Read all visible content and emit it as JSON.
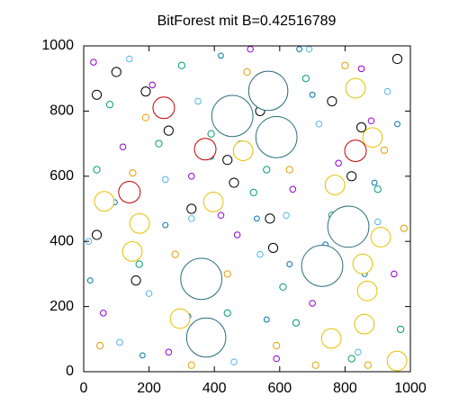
{
  "chart_data": {
    "type": "scatter",
    "title": "BitForest mit B=0.42516789",
    "xlim": [
      0,
      1000
    ],
    "ylim": [
      0,
      1000
    ],
    "xticks": [
      0,
      200,
      400,
      600,
      800,
      1000
    ],
    "yticks": [
      0,
      200,
      400,
      600,
      800,
      1000
    ],
    "series": [
      {
        "color": "#9400d3",
        "fill": "none",
        "size": 9,
        "x": [
          30,
          120,
          210,
          330,
          420,
          510,
          640,
          700,
          780,
          880,
          950,
          60,
          260,
          470,
          590,
          850
        ],
        "y": [
          950,
          690,
          880,
          600,
          480,
          990,
          560,
          210,
          640,
          770,
          300,
          180,
          60,
          420,
          40,
          930
        ]
      },
      {
        "color": "#009e73",
        "fill": "none",
        "size": 10,
        "x": [
          80,
          170,
          300,
          390,
          520,
          610,
          680,
          760,
          900,
          970,
          40,
          230,
          440,
          560,
          820,
          650
        ],
        "y": [
          820,
          330,
          940,
          730,
          550,
          260,
          900,
          480,
          560,
          130,
          620,
          700,
          180,
          620,
          40,
          150
        ]
      },
      {
        "color": "#56b4e9",
        "fill": "none",
        "size": 9,
        "x": [
          15,
          140,
          250,
          350,
          460,
          540,
          620,
          720,
          840,
          930,
          200,
          330,
          480,
          690,
          900,
          110
        ],
        "y": [
          400,
          960,
          590,
          830,
          30,
          360,
          480,
          760,
          60,
          860,
          240,
          470,
          700,
          990,
          460,
          90
        ]
      },
      {
        "color": "#e69f00",
        "fill": "none",
        "size": 10,
        "x": [
          50,
          190,
          280,
          400,
          500,
          630,
          710,
          800,
          920,
          980,
          330,
          590,
          760,
          150,
          440,
          870
        ],
        "y": [
          80,
          780,
          360,
          540,
          920,
          620,
          20,
          940,
          680,
          440,
          20,
          80,
          570,
          610,
          300,
          20
        ]
      },
      {
        "color": "#0072b2",
        "fill": "none",
        "size": 8,
        "x": [
          95,
          180,
          320,
          420,
          530,
          660,
          740,
          860,
          960,
          250,
          560,
          700,
          20,
          390,
          630,
          890
        ],
        "y": [
          520,
          50,
          170,
          970,
          470,
          990,
          390,
          300,
          760,
          450,
          160,
          850,
          280,
          660,
          330,
          580
        ]
      },
      {
        "color": "#000000",
        "fill": "#ffffff",
        "size": 14,
        "x": [
          40,
          190,
          100,
          260,
          540,
          850,
          330,
          460,
          570,
          760,
          960,
          160,
          820,
          580,
          440,
          40
        ],
        "y": [
          850,
          860,
          920,
          740,
          800,
          750,
          500,
          580,
          470,
          830,
          960,
          280,
          600,
          380,
          650,
          420
        ]
      },
      {
        "color": "#e6c000",
        "fill": "#ffffff",
        "size": 30,
        "x": [
          832,
          488,
          769,
          884,
          63,
          397,
          171,
          909,
          149,
          854,
          868,
          295,
          859,
          758,
          959
        ],
        "y": [
          870,
          678,
          573,
          719,
          523,
          521,
          455,
          413,
          369,
          331,
          248,
          163,
          146,
          102,
          33
        ]
      },
      {
        "color": "#c00000",
        "fill": "#ffffff",
        "size": 33,
        "x": [
          245,
          372,
          832,
          140
        ],
        "y": [
          810,
          683,
          678,
          551
        ]
      },
      {
        "color": "#2a6f7a",
        "fill": "#ffffff",
        "x": [
          565,
          455,
          590,
          810,
          730,
          360,
          375
        ],
        "y": [
          862,
          785,
          720,
          445,
          325,
          285,
          105
        ],
        "sizes": [
          60,
          63,
          63,
          63,
          63,
          63,
          60
        ]
      }
    ]
  }
}
